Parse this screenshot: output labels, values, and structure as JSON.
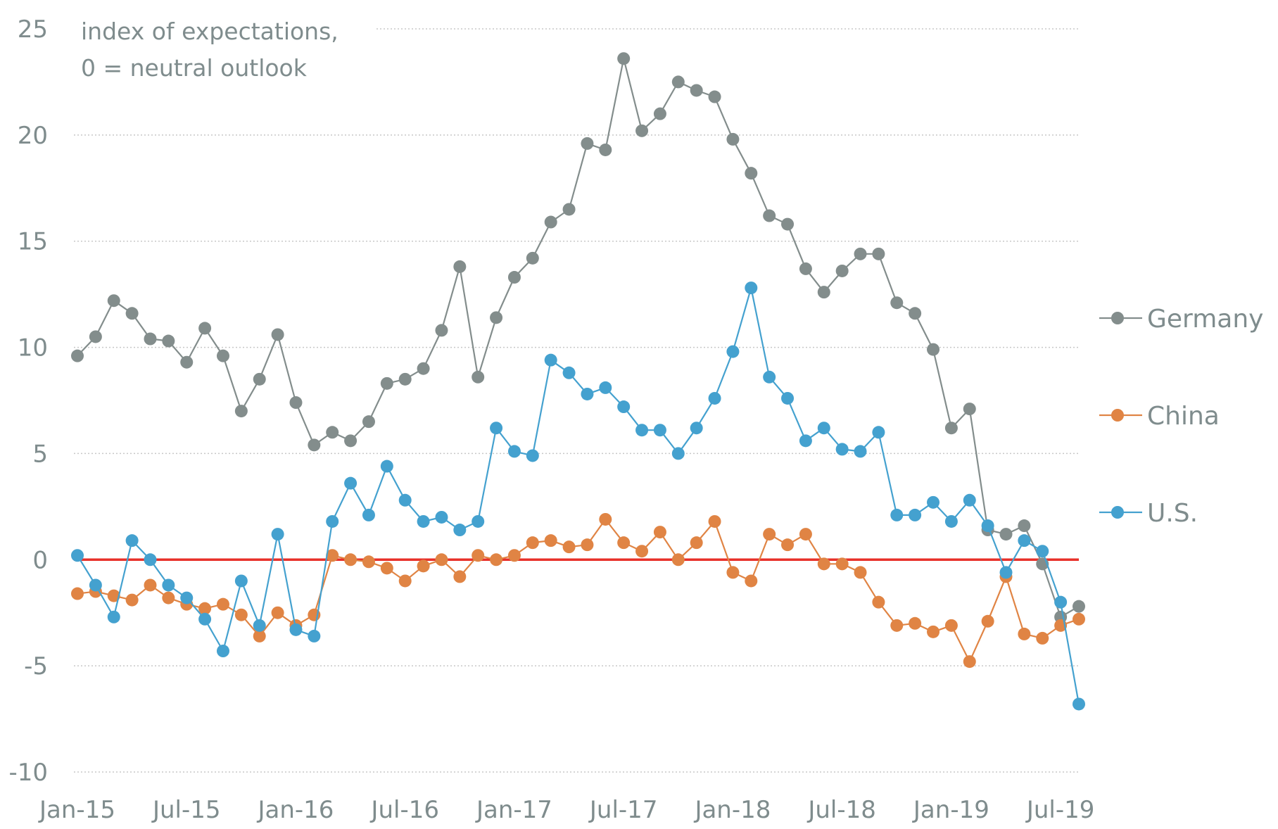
{
  "chart_data": {
    "type": "line",
    "title": "",
    "annotation": [
      "index of expectations,",
      "0 = neutral outlook"
    ],
    "xlabel": "",
    "ylabel": "",
    "ylim": [
      -10,
      25
    ],
    "yticks": [
      25,
      20,
      15,
      10,
      5,
      0,
      -5,
      -10
    ],
    "ytick_labels": [
      "25",
      "20",
      "15",
      "10",
      "5",
      "0",
      "-5",
      "-10"
    ],
    "x_start": "Jan-15",
    "x_end": "Aug-19",
    "xtick_labels": [
      "Jan-15",
      "Jul-15",
      "Jan-16",
      "Jul-16",
      "Jan-17",
      "Jul-17",
      "Jan-18",
      "Jul-18",
      "Jan-19",
      "Jul-19"
    ],
    "xtick_month_index": [
      0,
      6,
      12,
      18,
      24,
      30,
      36,
      42,
      48,
      54
    ],
    "grid": true,
    "zero_line_color": "#e8312a",
    "legend_position": "right",
    "series": [
      {
        "name": "Germany",
        "color": "#838d8c",
        "values": [
          9.6,
          10.5,
          12.2,
          11.6,
          10.4,
          10.3,
          9.3,
          10.9,
          9.6,
          7.0,
          8.5,
          10.6,
          7.4,
          5.4,
          6.0,
          5.6,
          6.5,
          8.3,
          8.5,
          9.0,
          10.8,
          13.8,
          8.6,
          11.4,
          13.3,
          14.2,
          15.9,
          16.5,
          19.6,
          19.3,
          23.6,
          20.2,
          21.0,
          22.5,
          22.1,
          21.8,
          19.8,
          18.2,
          16.2,
          15.8,
          13.7,
          12.6,
          13.6,
          14.4,
          14.4,
          12.1,
          11.6,
          9.9,
          6.2,
          7.1,
          1.4,
          1.2,
          1.6,
          -0.2,
          -2.7,
          -2.2
        ]
      },
      {
        "name": "China",
        "color": "#e08444",
        "values": [
          -1.6,
          -1.5,
          -1.7,
          -1.9,
          -1.2,
          -1.8,
          -2.1,
          -2.3,
          -2.1,
          -2.6,
          -3.6,
          -2.5,
          -3.1,
          -2.6,
          0.2,
          0.0,
          -0.1,
          -0.4,
          -1.0,
          -0.3,
          0.0,
          -0.8,
          0.2,
          0.0,
          0.2,
          0.8,
          0.9,
          0.6,
          0.7,
          1.9,
          0.8,
          0.4,
          1.3,
          0.0,
          0.8,
          1.8,
          -0.6,
          -1.0,
          1.2,
          0.7,
          1.2,
          -0.2,
          -0.2,
          -0.6,
          -2.0,
          -3.1,
          -3.0,
          -3.4,
          -3.1,
          -4.8,
          -2.9,
          -0.8,
          -3.5,
          -3.7,
          -3.1,
          -2.8
        ]
      },
      {
        "name": "U.S.",
        "color": "#44a1cf",
        "values": [
          0.2,
          -1.2,
          -2.7,
          0.9,
          0.0,
          -1.2,
          -1.8,
          -2.8,
          -4.3,
          -1.0,
          -3.1,
          1.2,
          -3.3,
          -3.6,
          1.8,
          3.6,
          2.1,
          4.4,
          2.8,
          1.8,
          2.0,
          1.4,
          1.8,
          6.2,
          5.1,
          4.9,
          9.4,
          8.8,
          7.8,
          8.1,
          7.2,
          6.1,
          6.1,
          5.0,
          6.2,
          7.6,
          9.8,
          12.8,
          8.6,
          7.6,
          5.6,
          6.2,
          5.2,
          5.1,
          6.0,
          2.1,
          2.1,
          2.7,
          1.8,
          2.8,
          1.6,
          -0.6,
          0.9,
          0.4,
          -2.0,
          -6.8
        ]
      }
    ]
  }
}
